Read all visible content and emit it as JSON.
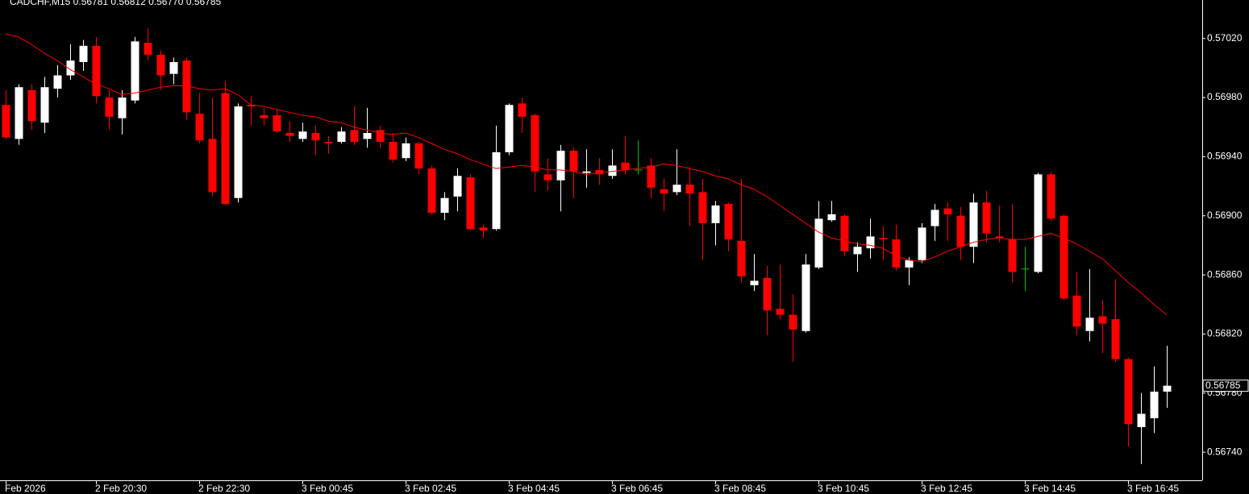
{
  "chart_data": {
    "type": "candlestick",
    "title": "CADCHF,M15  0.56781 0.56812 0.56770 0.56785",
    "background": "#000000",
    "axis_color": "#ffffff",
    "up_color": "#ffffff",
    "down_color": "#ff0000",
    "doji_color": "#00c000",
    "categories": [
      "Feb 2026",
      null,
      null,
      null,
      null,
      null,
      null,
      "2 Feb 20:30",
      null,
      null,
      null,
      null,
      null,
      null,
      null,
      "2 Feb 22:30",
      null,
      null,
      null,
      null,
      null,
      null,
      null,
      "3 Feb 00:45",
      null,
      null,
      null,
      null,
      null,
      null,
      null,
      "3 Feb 02:45",
      null,
      null,
      null,
      null,
      null,
      null,
      null,
      "3 Feb 04:45",
      null,
      null,
      null,
      null,
      null,
      null,
      null,
      "3 Feb 06:45",
      null,
      null,
      null,
      null,
      null,
      null,
      null,
      "3 Feb 08:45",
      null,
      null,
      null,
      null,
      null,
      null,
      null,
      "3 Feb 10:45",
      null,
      null,
      null,
      null,
      null,
      null,
      null,
      "3 Feb 12:45",
      null,
      null,
      null,
      null,
      null,
      null,
      null,
      "3 Feb 14:45",
      null,
      null,
      null,
      null,
      null,
      null,
      null,
      "3 Feb 16:45",
      null,
      null,
      null
    ],
    "open": [
      0.56975,
      0.56952,
      0.56985,
      0.56963,
      0.56986,
      0.56995,
      0.57004,
      0.57015,
      0.5698,
      0.56966,
      0.56978,
      0.57017,
      0.57009,
      0.56996,
      0.57005,
      0.56969,
      0.56952,
      0.56983,
      0.56912,
      0.56975,
      0.56968,
      0.56968,
      0.56956,
      0.56952,
      0.56956,
      0.5695,
      0.5695,
      0.56958,
      0.56952,
      0.56958,
      0.5695,
      0.56939,
      0.56949,
      0.56932,
      0.56902,
      0.56913,
      0.56926,
      0.56892,
      0.56891,
      0.56943,
      0.56976,
      0.56968,
      0.56928,
      0.56924,
      0.56944,
      0.56929,
      0.56931,
      0.56927,
      0.56936,
      0.56931,
      0.56934,
      0.56918,
      0.56916,
      0.56921,
      0.56916,
      0.56895,
      0.56908,
      0.56883,
      0.56853,
      0.56858,
      0.56837,
      0.56833,
      0.56822,
      0.56865,
      0.56897,
      0.569,
      0.56874,
      0.56878,
      0.56885,
      0.56884,
      0.56865,
      0.5687,
      0.56893,
      0.56905,
      0.569,
      0.56879,
      0.56909,
      0.56886,
      0.56884,
      0.56864,
      0.56862,
      0.56928,
      0.569,
      0.56846,
      0.56822,
      0.56832,
      0.5683,
      0.56803,
      0.56757,
      0.56763,
      0.56781
    ],
    "high": [
      0.56985,
      0.56989,
      0.56989,
      0.56994,
      0.57002,
      0.57016,
      0.57019,
      0.57021,
      0.56985,
      0.56985,
      0.57021,
      0.57027,
      0.57012,
      0.57007,
      0.57007,
      0.56983,
      0.5698,
      0.56991,
      0.56976,
      0.56981,
      0.56973,
      0.56972,
      0.56964,
      0.56963,
      0.56961,
      0.56954,
      0.5696,
      0.56974,
      0.56973,
      0.56961,
      0.56956,
      0.56953,
      0.5695,
      0.56934,
      0.56916,
      0.56932,
      0.56928,
      0.56894,
      0.56961,
      0.56976,
      0.5698,
      0.56969,
      0.56939,
      0.56948,
      0.56946,
      0.56945,
      0.56939,
      0.56945,
      0.56954,
      0.56951,
      0.56939,
      0.56925,
      0.56945,
      0.56933,
      0.56925,
      0.5691,
      0.56909,
      0.56925,
      0.56874,
      0.56866,
      0.56867,
      0.56847,
      0.56874,
      0.5691,
      0.5691,
      0.56901,
      0.56882,
      0.56898,
      0.56893,
      0.56894,
      0.56872,
      0.56895,
      0.56908,
      0.56909,
      0.56906,
      0.56915,
      0.56917,
      0.56907,
      0.56908,
      0.56879,
      0.56929,
      0.5693,
      0.56901,
      0.56862,
      0.56864,
      0.56843,
      0.56857,
      0.56804,
      0.5678,
      0.56798,
      0.56812
    ],
    "low": [
      0.56952,
      0.56948,
      0.56958,
      0.56956,
      0.5698,
      0.56992,
      0.56998,
      0.56976,
      0.56958,
      0.56955,
      0.56976,
      0.57005,
      0.56985,
      0.56989,
      0.56965,
      0.56949,
      0.56913,
      0.56907,
      0.56909,
      0.56961,
      0.56961,
      0.56956,
      0.5695,
      0.5695,
      0.56941,
      0.56942,
      0.56949,
      0.56948,
      0.56946,
      0.56946,
      0.56936,
      0.56937,
      0.56928,
      0.56901,
      0.56897,
      0.56903,
      0.5689,
      0.56885,
      0.5689,
      0.56941,
      0.56956,
      0.56916,
      0.56917,
      0.56903,
      0.56912,
      0.56919,
      0.56921,
      0.56925,
      0.56928,
      0.56928,
      0.56912,
      0.56903,
      0.56914,
      0.56893,
      0.5687,
      0.5688,
      0.56876,
      0.56855,
      0.56849,
      0.56819,
      0.5683,
      0.56801,
      0.56821,
      0.56864,
      0.56896,
      0.56873,
      0.56862,
      0.56871,
      0.5687,
      0.56863,
      0.56853,
      0.56868,
      0.56883,
      0.56883,
      0.5687,
      0.56868,
      0.56882,
      0.56882,
      0.56855,
      0.56849,
      0.56861,
      0.56896,
      0.56843,
      0.56819,
      0.56815,
      0.56807,
      0.56801,
      0.56744,
      0.56732,
      0.56753,
      0.5677
    ],
    "close": [
      0.56953,
      0.56987,
      0.56964,
      0.56987,
      0.56995,
      0.57005,
      0.57015,
      0.56981,
      0.56967,
      0.5698,
      0.57018,
      0.57009,
      0.56995,
      0.57004,
      0.5697,
      0.56951,
      0.56916,
      0.56908,
      0.56974,
      0.56974,
      0.56966,
      0.56957,
      0.56954,
      0.56957,
      0.56951,
      0.56949,
      0.56957,
      0.5695,
      0.56956,
      0.5695,
      0.56938,
      0.56949,
      0.56932,
      0.56902,
      0.56912,
      0.56927,
      0.56891,
      0.5689,
      0.56943,
      0.56975,
      0.56967,
      0.5693,
      0.56924,
      0.56944,
      0.5693,
      0.5693,
      0.56928,
      0.56934,
      0.56931,
      0.56931,
      0.56919,
      0.56915,
      0.56921,
      0.56915,
      0.56895,
      0.56907,
      0.56884,
      0.56859,
      0.56856,
      0.56836,
      0.56833,
      0.56823,
      0.56867,
      0.56898,
      0.56901,
      0.56876,
      0.56879,
      0.56886,
      0.56884,
      0.56865,
      0.5687,
      0.56892,
      0.56904,
      0.56901,
      0.56879,
      0.56909,
      0.56888,
      0.56885,
      0.56862,
      0.56864,
      0.56928,
      0.56898,
      0.56844,
      0.56825,
      0.56831,
      0.56827,
      0.56803,
      0.56759,
      0.56766,
      0.56781,
      0.56785
    ],
    "moving_average": {
      "color": "#ff0000",
      "values": [
        0.57023,
        0.57021,
        0.57016,
        0.5701,
        0.57005,
        0.56999,
        0.56994,
        0.56989,
        0.56986,
        0.56982,
        0.56983,
        0.56985,
        0.56987,
        0.56988,
        0.56988,
        0.56986,
        0.56985,
        0.56986,
        0.56982,
        0.56975,
        0.56974,
        0.56972,
        0.5697,
        0.56968,
        0.56967,
        0.56964,
        0.56963,
        0.5696,
        0.56958,
        0.56956,
        0.56955,
        0.56956,
        0.56953,
        0.56949,
        0.56945,
        0.56942,
        0.56938,
        0.56935,
        0.56932,
        0.56933,
        0.56934,
        0.56933,
        0.56931,
        0.56931,
        0.5693,
        0.56928,
        0.56929,
        0.5693,
        0.56931,
        0.56932,
        0.56933,
        0.56935,
        0.56934,
        0.56932,
        0.5693,
        0.56927,
        0.56925,
        0.56921,
        0.56918,
        0.56913,
        0.56907,
        0.56901,
        0.56895,
        0.56889,
        0.56885,
        0.56883,
        0.56881,
        0.5688,
        0.56878,
        0.56873,
        0.5687,
        0.56869,
        0.56872,
        0.56876,
        0.56879,
        0.56882,
        0.56884,
        0.56885,
        0.56884,
        0.56884,
        0.56886,
        0.56888,
        0.56885,
        0.56881,
        0.56876,
        0.56871,
        0.56863,
        0.56855,
        0.56848,
        0.5684,
        0.56833
      ]
    },
    "ylim": [
      0.56721,
      0.57046
    ],
    "yticks": [
      {
        "value": 0.5674,
        "label": "0.56740"
      },
      {
        "value": 0.5678,
        "label": "0.56780"
      },
      {
        "value": 0.5682,
        "label": "0.56820"
      },
      {
        "value": 0.5686,
        "label": "0.56860"
      },
      {
        "value": 0.569,
        "label": "0.56900"
      },
      {
        "value": 0.5694,
        "label": "0.56940"
      },
      {
        "value": 0.5698,
        "label": "0.56980"
      },
      {
        "value": 0.5702,
        "label": "0.57020"
      }
    ],
    "current_price": {
      "value": 0.56785,
      "label": "0.56785"
    }
  }
}
